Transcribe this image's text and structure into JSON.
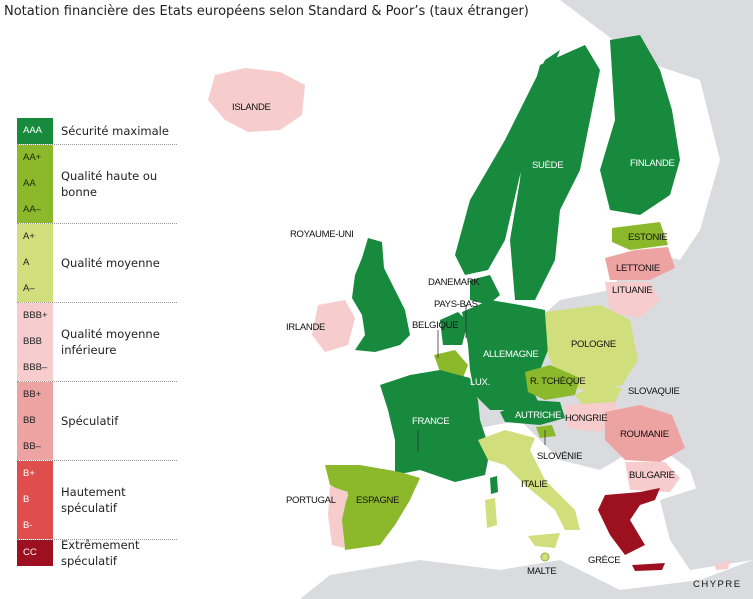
{
  "title": "Notation financière des Etats européens selon Standard & Poor’s (taux étranger)",
  "colors": {
    "sea": "#ffffff",
    "land": "#d9dbde",
    "AAA": "#178a3e",
    "AA": "#8cb92b",
    "A": "#d0df7c",
    "BBB": "#f6cccc",
    "BB": "#eea3a3",
    "B": "#e04d4d",
    "CC": "#9c1020"
  },
  "legend": [
    {
      "codes": [
        "AAA"
      ],
      "description": "Sécurité maximale",
      "color": "#178a3e",
      "text": "#ffffff"
    },
    {
      "codes": [
        "AA+",
        "AA",
        "AA–"
      ],
      "description": "Qualité haute ou bonne",
      "color": "#8cb92b",
      "text": "#1a2a00"
    },
    {
      "codes": [
        "A+",
        "A",
        "A–"
      ],
      "description": "Qualité moyenne",
      "color": "#d0df7c",
      "text": "#222222"
    },
    {
      "codes": [
        "BBB+",
        "BBB",
        "BBB–"
      ],
      "description": "Qualité moyenne inférieure",
      "color": "#f6cccc",
      "text": "#222222"
    },
    {
      "codes": [
        "BB+",
        "BB",
        "BB–"
      ],
      "description": "Spéculatif",
      "color": "#eea3a3",
      "text": "#222222"
    },
    {
      "codes": [
        "B+",
        "B",
        "B-"
      ],
      "description": "Hautement spéculatif",
      "color": "#e04d4d",
      "text": "#ffffff"
    },
    {
      "codes": [
        "CC"
      ],
      "description": "Extrêmement spéculatif",
      "color": "#9c1020",
      "text": "#ffffff"
    }
  ],
  "countries": {
    "islande": "ISLANDE",
    "royaume_uni": "ROYAUME-UNI",
    "irlande": "IRLANDE",
    "suede": "SUÈDE",
    "finlande": "FINLANDE",
    "estonie": "ESTONIE",
    "lettonie": "LETTONIE",
    "lituanie": "LITUANIE",
    "danemark": "DANEMARK",
    "pays_bas": "PAYS-BAS",
    "belgique": "BELGIQUE",
    "allemagne": "ALLEMAGNE",
    "pologne": "POLOGNE",
    "lux": "LUX.",
    "r_tcheque": "R. TCHÈQUE",
    "slovaquie": "SLOVAQUIE",
    "france": "FRANCE",
    "autriche": "AUTRICHE",
    "hongrie": "HONGRIE",
    "roumanie": "ROUMANIE",
    "slovenie": "SLOVÉNIE",
    "bulgarie": "BULGARIE",
    "portugal": "PORTUGAL",
    "espagne": "ESPAGNE",
    "italie": "ITALIE",
    "grece": "GRÈCE",
    "malte": "MALTE",
    "chypre": "CHYPRE"
  }
}
